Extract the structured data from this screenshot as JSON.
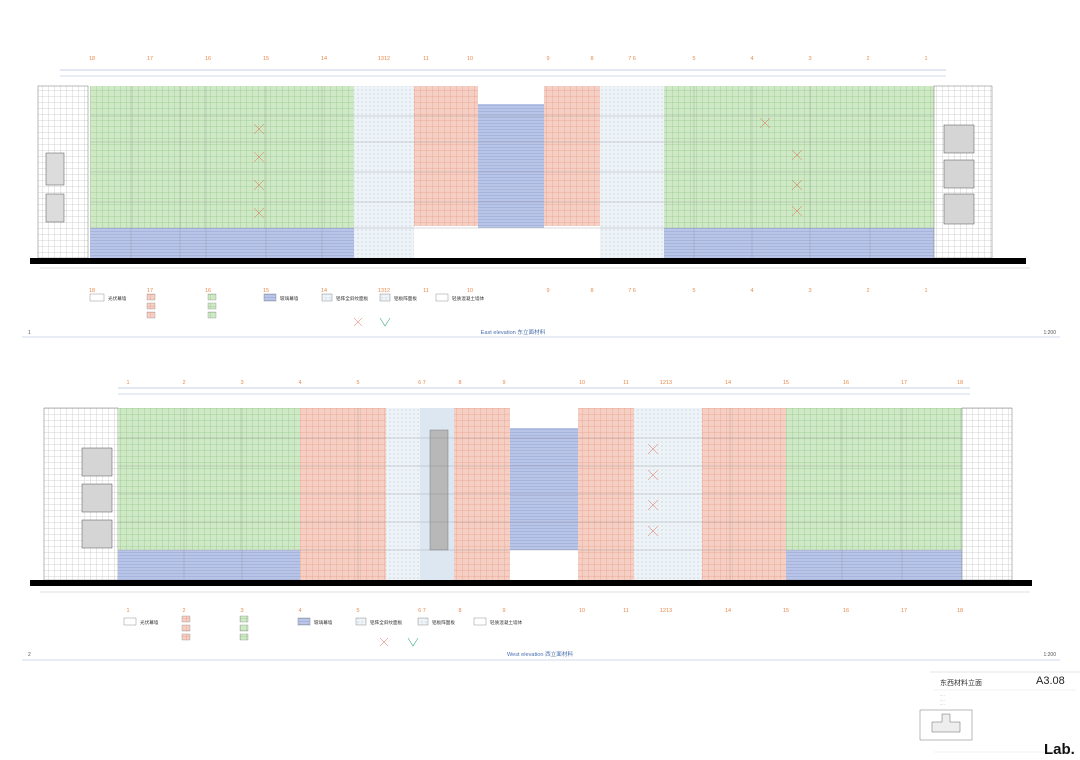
{
  "drawings": [
    {
      "id": "east",
      "number": "1",
      "caption": "East elevation 东立面材料",
      "scale": "1:200",
      "grid_labels": [
        "18",
        "17",
        "16",
        "15",
        "14",
        "1312",
        "11",
        "10",
        "9",
        "8",
        "7 6",
        "5",
        "4",
        "3",
        "2",
        "1"
      ],
      "legend": [
        {
          "label": "光伏幕墙",
          "swatch": "white"
        },
        {
          "label": "",
          "swatch": "red-grid"
        },
        {
          "label": "",
          "swatch": "green-grid"
        },
        {
          "label": "玻璃幕墙",
          "swatch": "blue"
        },
        {
          "label": "铝阵全斜纹面板",
          "swatch": "dots"
        },
        {
          "label": "铝板阵面板",
          "swatch": "dots"
        },
        {
          "label": "轻质混凝土墙体",
          "swatch": "white"
        }
      ]
    },
    {
      "id": "west",
      "number": "2",
      "caption": "West elevation 西立面材料",
      "scale": "1:200",
      "grid_labels": [
        "1",
        "2",
        "3",
        "4",
        "5",
        "6 7",
        "8",
        "9",
        "10",
        "11",
        "1213",
        "14",
        "15",
        "16",
        "17",
        "18"
      ],
      "legend": [
        {
          "label": "光伏幕墙",
          "swatch": "white"
        },
        {
          "label": "",
          "swatch": "red-grid"
        },
        {
          "label": "",
          "swatch": "green-grid"
        },
        {
          "label": "玻璃幕墙",
          "swatch": "blue"
        },
        {
          "label": "铝阵全斜纹面板",
          "swatch": "dots"
        },
        {
          "label": "铝板阵面板",
          "swatch": "dots"
        },
        {
          "label": "轻质混凝土墙体",
          "swatch": "white"
        }
      ]
    }
  ],
  "title_block": {
    "sheet_title": "东西材料立面",
    "sheet_number": "A3.08",
    "logo": "Lab."
  },
  "colors": {
    "green": "#c9e7c0",
    "red": "#f3c9bd",
    "blue": "#b7c3e6",
    "lightblue": "#dde7f1",
    "orange_labels": "#e8884a",
    "caption_blue": "#4a6fb0"
  }
}
